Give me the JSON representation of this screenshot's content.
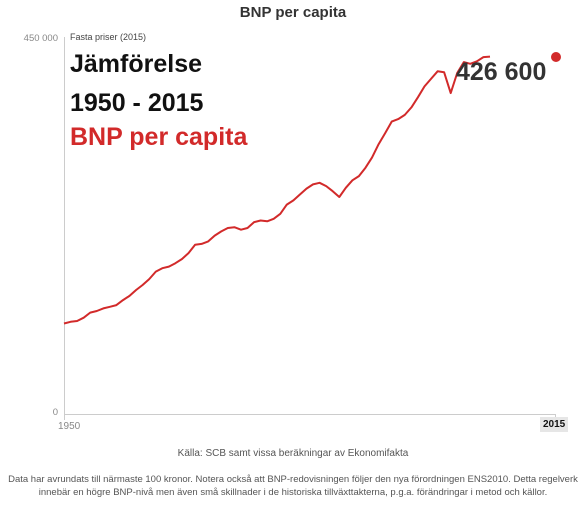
{
  "chart_data": {
    "type": "line",
    "title": "BNP per capita",
    "subtitle": "Fasta priser (2015)",
    "overlay_lines": [
      "Jämförelse",
      "1950 - 2015",
      "BNP per capita"
    ],
    "end_value_label": "426 600",
    "y_tick_labels": [
      "450 000",
      "0"
    ],
    "x_tick_labels": [
      "1950",
      "2015"
    ],
    "xlim": [
      1950,
      2015
    ],
    "ylim": [
      0,
      450000
    ],
    "series": [
      {
        "color": "#d22a2a",
        "x": [
          1950,
          1951,
          1952,
          1953,
          1954,
          1955,
          1956,
          1957,
          1958,
          1959,
          1960,
          1961,
          1962,
          1963,
          1964,
          1965,
          1966,
          1967,
          1968,
          1969,
          1970,
          1971,
          1972,
          1973,
          1974,
          1975,
          1976,
          1977,
          1978,
          1979,
          1980,
          1981,
          1982,
          1983,
          1984,
          1985,
          1986,
          1987,
          1988,
          1989,
          1990,
          1991,
          1992,
          1993,
          1994,
          1995,
          1996,
          1997,
          1998,
          1999,
          2000,
          2001,
          2002,
          2003,
          2004,
          2005,
          2006,
          2007,
          2008,
          2009,
          2010,
          2011,
          2012,
          2013,
          2014,
          2015
        ],
        "values": [
          108000,
          110000,
          111000,
          115000,
          121000,
          123000,
          126000,
          128000,
          130000,
          136000,
          141000,
          148000,
          154000,
          161000,
          170000,
          174000,
          176000,
          180000,
          185000,
          192000,
          202000,
          203000,
          206000,
          213000,
          218000,
          222000,
          223000,
          220000,
          222000,
          229000,
          231000,
          230000,
          233000,
          239000,
          250000,
          255000,
          262000,
          269000,
          274000,
          276000,
          272000,
          266000,
          259000,
          270000,
          279000,
          284000,
          294000,
          306000,
          322000,
          335000,
          349000,
          352000,
          357000,
          366000,
          378000,
          391000,
          400000,
          409000,
          408000,
          383000,
          407000,
          420000,
          418000,
          421000,
          426000,
          426600
        ]
      }
    ]
  },
  "footer": {
    "source": "Källa: SCB samt vissa beräkningar av Ekonomifakta",
    "note": "Data har avrundats till närmaste 100 kronor. Notera också att BNP-redovisningen följer den nya förordningen ENS2010. Detta regelverk innebär en högre BNP-nivå men även små skillnader i de historiska tillväxttakterna, p.g.a. förändringar i metod och källor."
  },
  "colors": {
    "line": "#d22a2a",
    "accent_text": "#d22a2a"
  }
}
